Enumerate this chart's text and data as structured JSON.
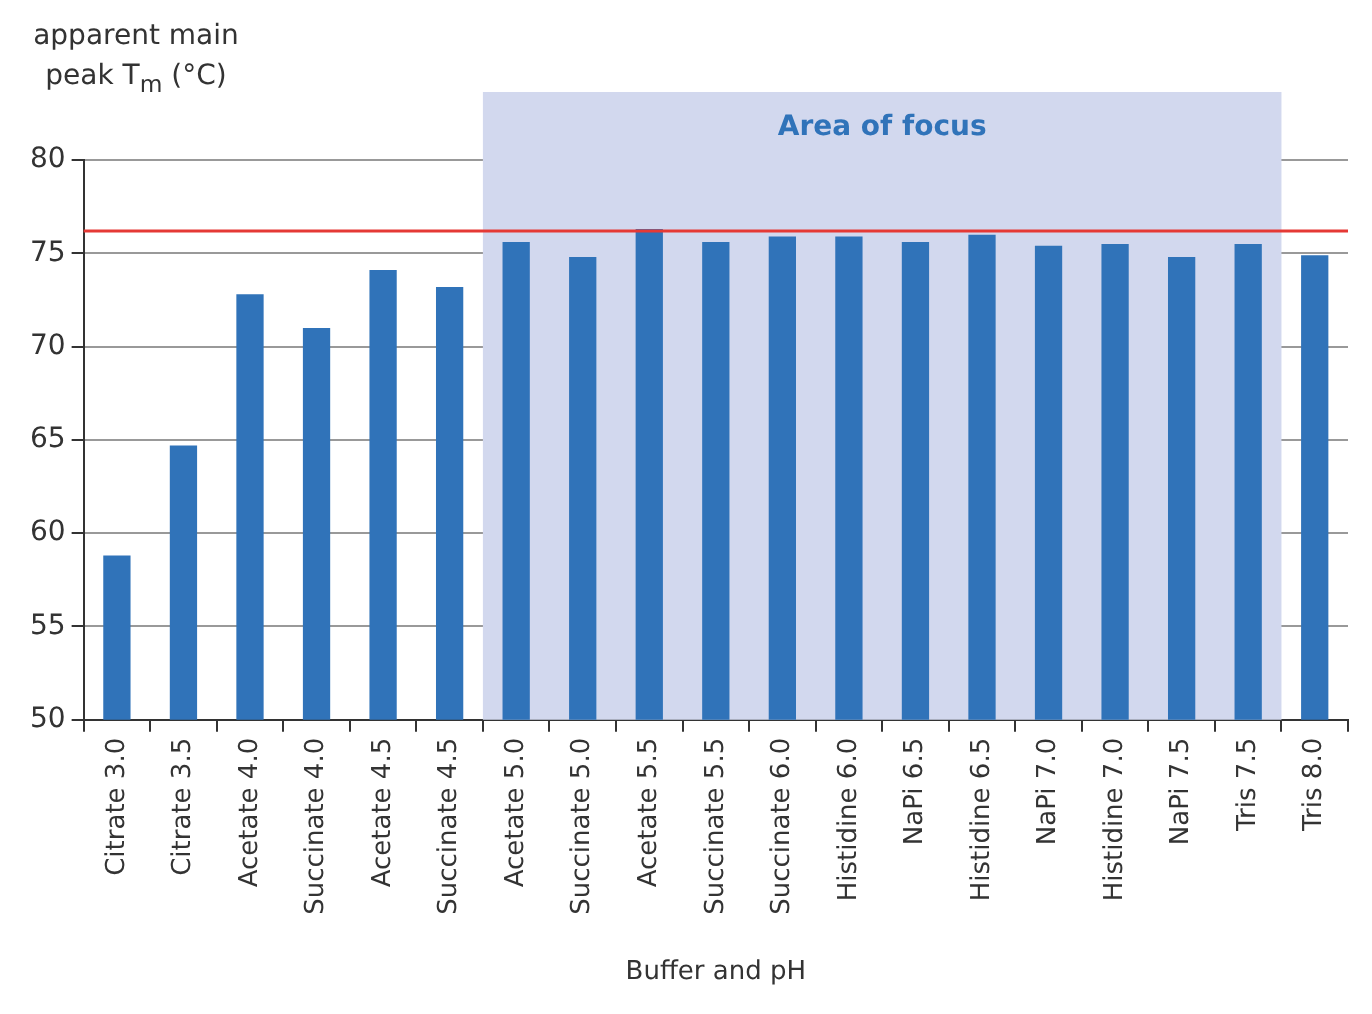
{
  "chart_data": {
    "type": "bar",
    "ylabel": "apparent main peak T$_{m}$ (°C)",
    "xlabel": "Buffer and pH",
    "categories": [
      "Citrate 3.0",
      "Citrate 3.5",
      "Acetate 4.0",
      "Succinate 4.0",
      "Acetate 4.5",
      "Succinate 4.5",
      "Acetate 5.0",
      "Succinate 5.0",
      "Acetate 5.5",
      "Succinate 5.5",
      "Succinate 6.0",
      "Histidine 6.0",
      "NaPi 6.5",
      "Histidine 6.5",
      "NaPi 7.0",
      "Histidine 7.0",
      "NaPi 7.5",
      "Tris 7.5",
      "Tris 8.0"
    ],
    "values": [
      58.8,
      64.7,
      72.8,
      71.0,
      74.1,
      73.2,
      75.6,
      74.8,
      76.3,
      75.6,
      75.9,
      75.9,
      75.6,
      76.0,
      75.4,
      75.5,
      74.8,
      75.5,
      74.9
    ],
    "color": "#3073b9",
    "ylim": [
      50,
      80
    ],
    "yticks": [
      50,
      55,
      60,
      65,
      70,
      75,
      80
    ],
    "grid": "y",
    "legend": false,
    "bands": [
      {
        "axis": "x",
        "from": "Acetate 5.0",
        "to": "Tris 7.5",
        "label": "Area of focus",
        "color": "#d2d8ee"
      }
    ],
    "ref_lines": [
      {
        "axis": "y",
        "value": 76.2,
        "color": "#e53935"
      }
    ]
  }
}
